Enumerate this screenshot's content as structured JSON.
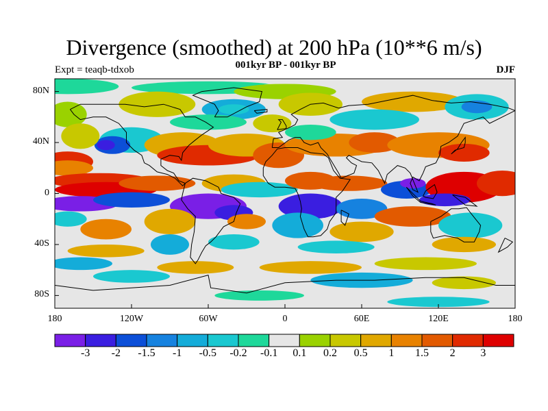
{
  "title": "Divergence (smoothed) at 200 hPa (10**6 m/s)",
  "subtitle": "001kyr BP - 001kyr BP",
  "experiment_label": "Expt = teaqb-tdxob",
  "season_label": "DJF",
  "map": {
    "projection": "cylindrical-equidistant",
    "lon_range": [
      -180,
      180
    ],
    "lat_range": [
      -90,
      90
    ],
    "lat_ticks": [
      {
        "value": 80,
        "label": "80N"
      },
      {
        "value": 40,
        "label": "40N"
      },
      {
        "value": 0,
        "label": "0"
      },
      {
        "value": -40,
        "label": "40S"
      },
      {
        "value": -80,
        "label": "80S"
      }
    ],
    "lon_ticks": [
      {
        "value": -180,
        "label": "180"
      },
      {
        "value": -120,
        "label": "120W"
      },
      {
        "value": -60,
        "label": "60W"
      },
      {
        "value": 0,
        "label": "0"
      },
      {
        "value": 60,
        "label": "60E"
      },
      {
        "value": 120,
        "label": "120E"
      },
      {
        "value": 180,
        "label": "180"
      }
    ]
  },
  "colorbar": {
    "levels": [
      "-3",
      "-2",
      "-1.5",
      "-1",
      "-0.5",
      "-0.2",
      "-0.1",
      "0.1",
      "0.2",
      "0.5",
      "1",
      "1.5",
      "2",
      "3"
    ],
    "colors": [
      "#7a1fe6",
      "#3a1ee0",
      "#0c4fd8",
      "#1682df",
      "#14acd9",
      "#1ac8d0",
      "#1ed89a",
      "#e6e6e6",
      "#9ad200",
      "#c8c800",
      "#e0a800",
      "#e88200",
      "#e25a00",
      "#e02a00",
      "#de0000"
    ]
  }
}
